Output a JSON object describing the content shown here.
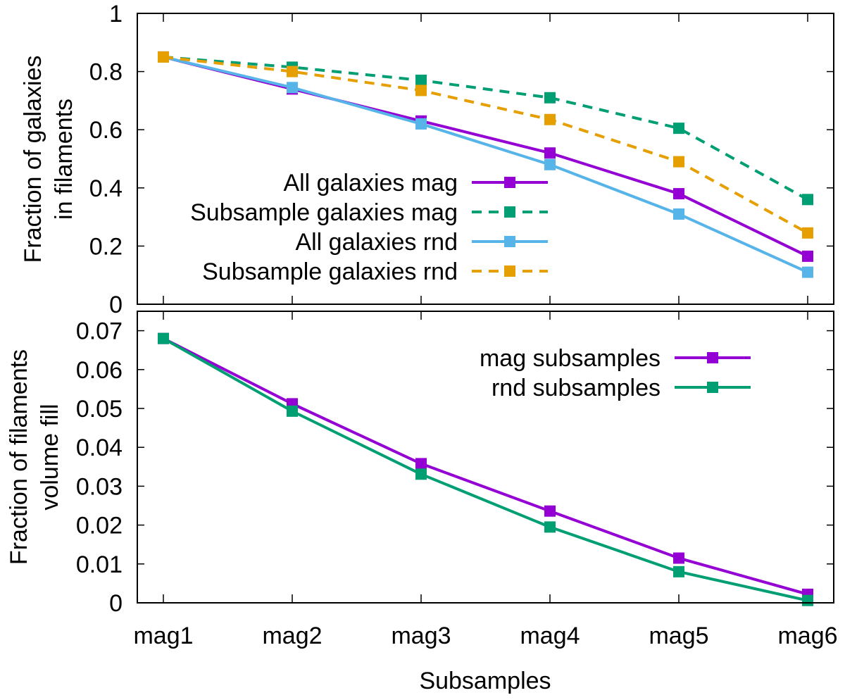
{
  "chart_data": [
    {
      "type": "line",
      "categories": [
        "mag1",
        "mag2",
        "mag3",
        "mag4",
        "mag5",
        "mag6"
      ],
      "ylabel": [
        "Fraction of galaxies",
        "in filaments"
      ],
      "ylim": [
        0,
        1
      ],
      "yticks": [
        "0",
        "0.2",
        "0.4",
        "0.6",
        "0.8",
        "1"
      ],
      "ytick_values": [
        0,
        0.2,
        0.4,
        0.6,
        0.8,
        1
      ],
      "legend_position": "center-left",
      "series": [
        {
          "name": "All galaxies mag",
          "values": [
            0.85,
            0.74,
            0.63,
            0.52,
            0.38,
            0.165
          ],
          "color": "#9400d3",
          "dashed": false
        },
        {
          "name": "Subsample galaxies mag",
          "values": [
            0.85,
            0.815,
            0.77,
            0.71,
            0.605,
            0.36
          ],
          "color": "#009e73",
          "dashed": true
        },
        {
          "name": "All galaxies rnd",
          "values": [
            0.85,
            0.745,
            0.62,
            0.48,
            0.31,
            0.11
          ],
          "color": "#56b4e9",
          "dashed": false
        },
        {
          "name": "Subsample galaxies rnd",
          "values": [
            0.85,
            0.8,
            0.735,
            0.635,
            0.49,
            0.245
          ],
          "color": "#e69f00",
          "dashed": true
        }
      ]
    },
    {
      "type": "line",
      "categories": [
        "mag1",
        "mag2",
        "mag3",
        "mag4",
        "mag5",
        "mag6"
      ],
      "xlabel": "Subsamples",
      "ylabel": [
        "Fraction of filaments",
        "volume fill"
      ],
      "ylim": [
        0,
        0.075
      ],
      "yticks": [
        "0",
        "0.01",
        "0.02",
        "0.03",
        "0.04",
        "0.05",
        "0.06",
        "0.07"
      ],
      "ytick_values": [
        0,
        0.01,
        0.02,
        0.03,
        0.04,
        0.05,
        0.06,
        0.07
      ],
      "legend_position": "top-right",
      "series": [
        {
          "name": "mag subsamples",
          "values": [
            0.068,
            0.0512,
            0.0358,
            0.0236,
            0.0115,
            0.0022
          ],
          "color": "#9400d3",
          "dashed": false
        },
        {
          "name": "rnd subsamples",
          "values": [
            0.068,
            0.0493,
            0.0331,
            0.0195,
            0.008,
            0.0006
          ],
          "color": "#009e73",
          "dashed": false
        }
      ]
    }
  ]
}
